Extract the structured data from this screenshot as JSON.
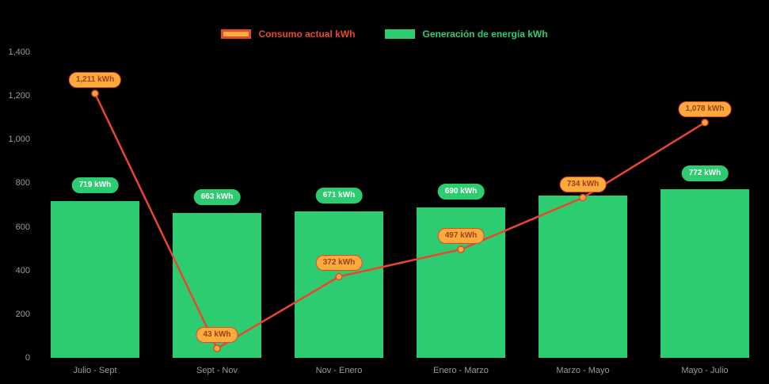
{
  "page": {
    "background": "#000000"
  },
  "legend": {
    "items": [
      {
        "label": "Consumo actual kWh",
        "swatch_fill": "#fbab3c",
        "swatch_border": "#e8472e",
        "text_color": "#e8472e"
      },
      {
        "label": "Generación de energía kWh",
        "swatch_fill": "#2ecc71",
        "swatch_border": "#2ecc71",
        "text_color": "#2ecc71"
      }
    ]
  },
  "chart_data": {
    "type": "bar+line",
    "title": "",
    "xlabel": "",
    "ylabel": "",
    "categories": [
      "Julio - Sept",
      "Sept - Nov",
      "Nov - Enero",
      "Enero - Marzo",
      "Marzo - Mayo",
      "Mayo - Julio"
    ],
    "series": [
      {
        "name": "Generación de energía kWh",
        "type": "bar",
        "color": "#2ecc71",
        "values": [
          719,
          663,
          671,
          690,
          745,
          772
        ],
        "point_labels": [
          "719 kWh",
          "663 kWh",
          "671 kWh",
          "690 kWh",
          null,
          "772 kWh"
        ]
      },
      {
        "name": "Consumo actual kWh",
        "type": "line",
        "color": "#e8472e",
        "point_fill": "#fbab3c",
        "values": [
          1211,
          43,
          372,
          497,
          734,
          1078
        ],
        "point_labels": [
          "1,211 kWh",
          "43 kWh",
          "372 kWh",
          "497 kWh",
          "734 kWh",
          "1,078 kWh"
        ]
      }
    ],
    "ylim": [
      0,
      1400
    ],
    "yticks": {
      "values": [
        0,
        200,
        400,
        600,
        800,
        1000,
        1200,
        1400
      ],
      "labels": [
        "0",
        "200",
        "400",
        "600",
        "800",
        "1,000",
        "1,200",
        "1,400"
      ]
    },
    "grid": false,
    "legend_position": "top",
    "axis_text_color": "#9a9a9a",
    "badge_styles": {
      "bar": {
        "bg": "#2ecc71",
        "text": "#ffffff",
        "border": "#2ecc71"
      },
      "line": {
        "bg": "#fbab3c",
        "text": "#a23c1e",
        "border": "#e8472e"
      }
    }
  }
}
